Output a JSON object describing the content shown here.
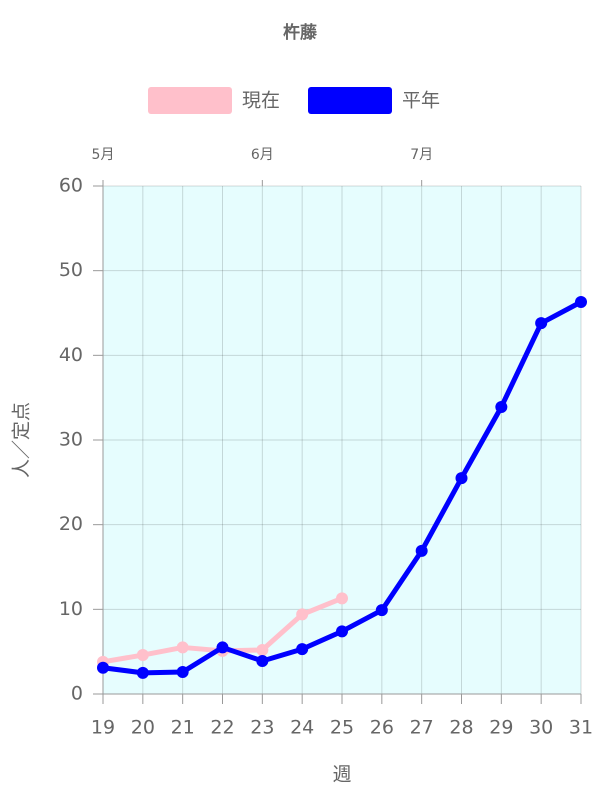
{
  "chart_data": {
    "type": "line",
    "title": "杵藤",
    "x": [
      19,
      20,
      21,
      22,
      23,
      24,
      25,
      26,
      27,
      28,
      29,
      30,
      31
    ],
    "xlim": [
      19,
      31
    ],
    "xticks": [
      19,
      20,
      21,
      22,
      23,
      24,
      25,
      26,
      27,
      28,
      29,
      30,
      31
    ],
    "x2ticks": [
      {
        "value": 19,
        "label": "5月"
      },
      {
        "value": 23,
        "label": "6月"
      },
      {
        "value": 27,
        "label": "7月"
      }
    ],
    "ylim": [
      0,
      60
    ],
    "yticks": [
      0,
      10,
      20,
      30,
      40,
      50,
      60
    ],
    "xlabel": "週",
    "ylabel": "人／定点",
    "grid": true,
    "background": "#e6fdfe",
    "series": [
      {
        "name": "現在",
        "color": "#ffc0cb",
        "values": [
          3.8,
          4.6,
          5.5,
          5.1,
          5.2,
          9.4,
          11.3,
          null,
          null,
          null,
          null,
          null,
          null
        ]
      },
      {
        "name": "平年",
        "color": "#0000ff",
        "values": [
          3.1,
          2.5,
          2.6,
          5.5,
          3.9,
          5.3,
          7.4,
          9.9,
          16.9,
          25.5,
          33.9,
          43.8,
          46.3
        ]
      }
    ]
  }
}
